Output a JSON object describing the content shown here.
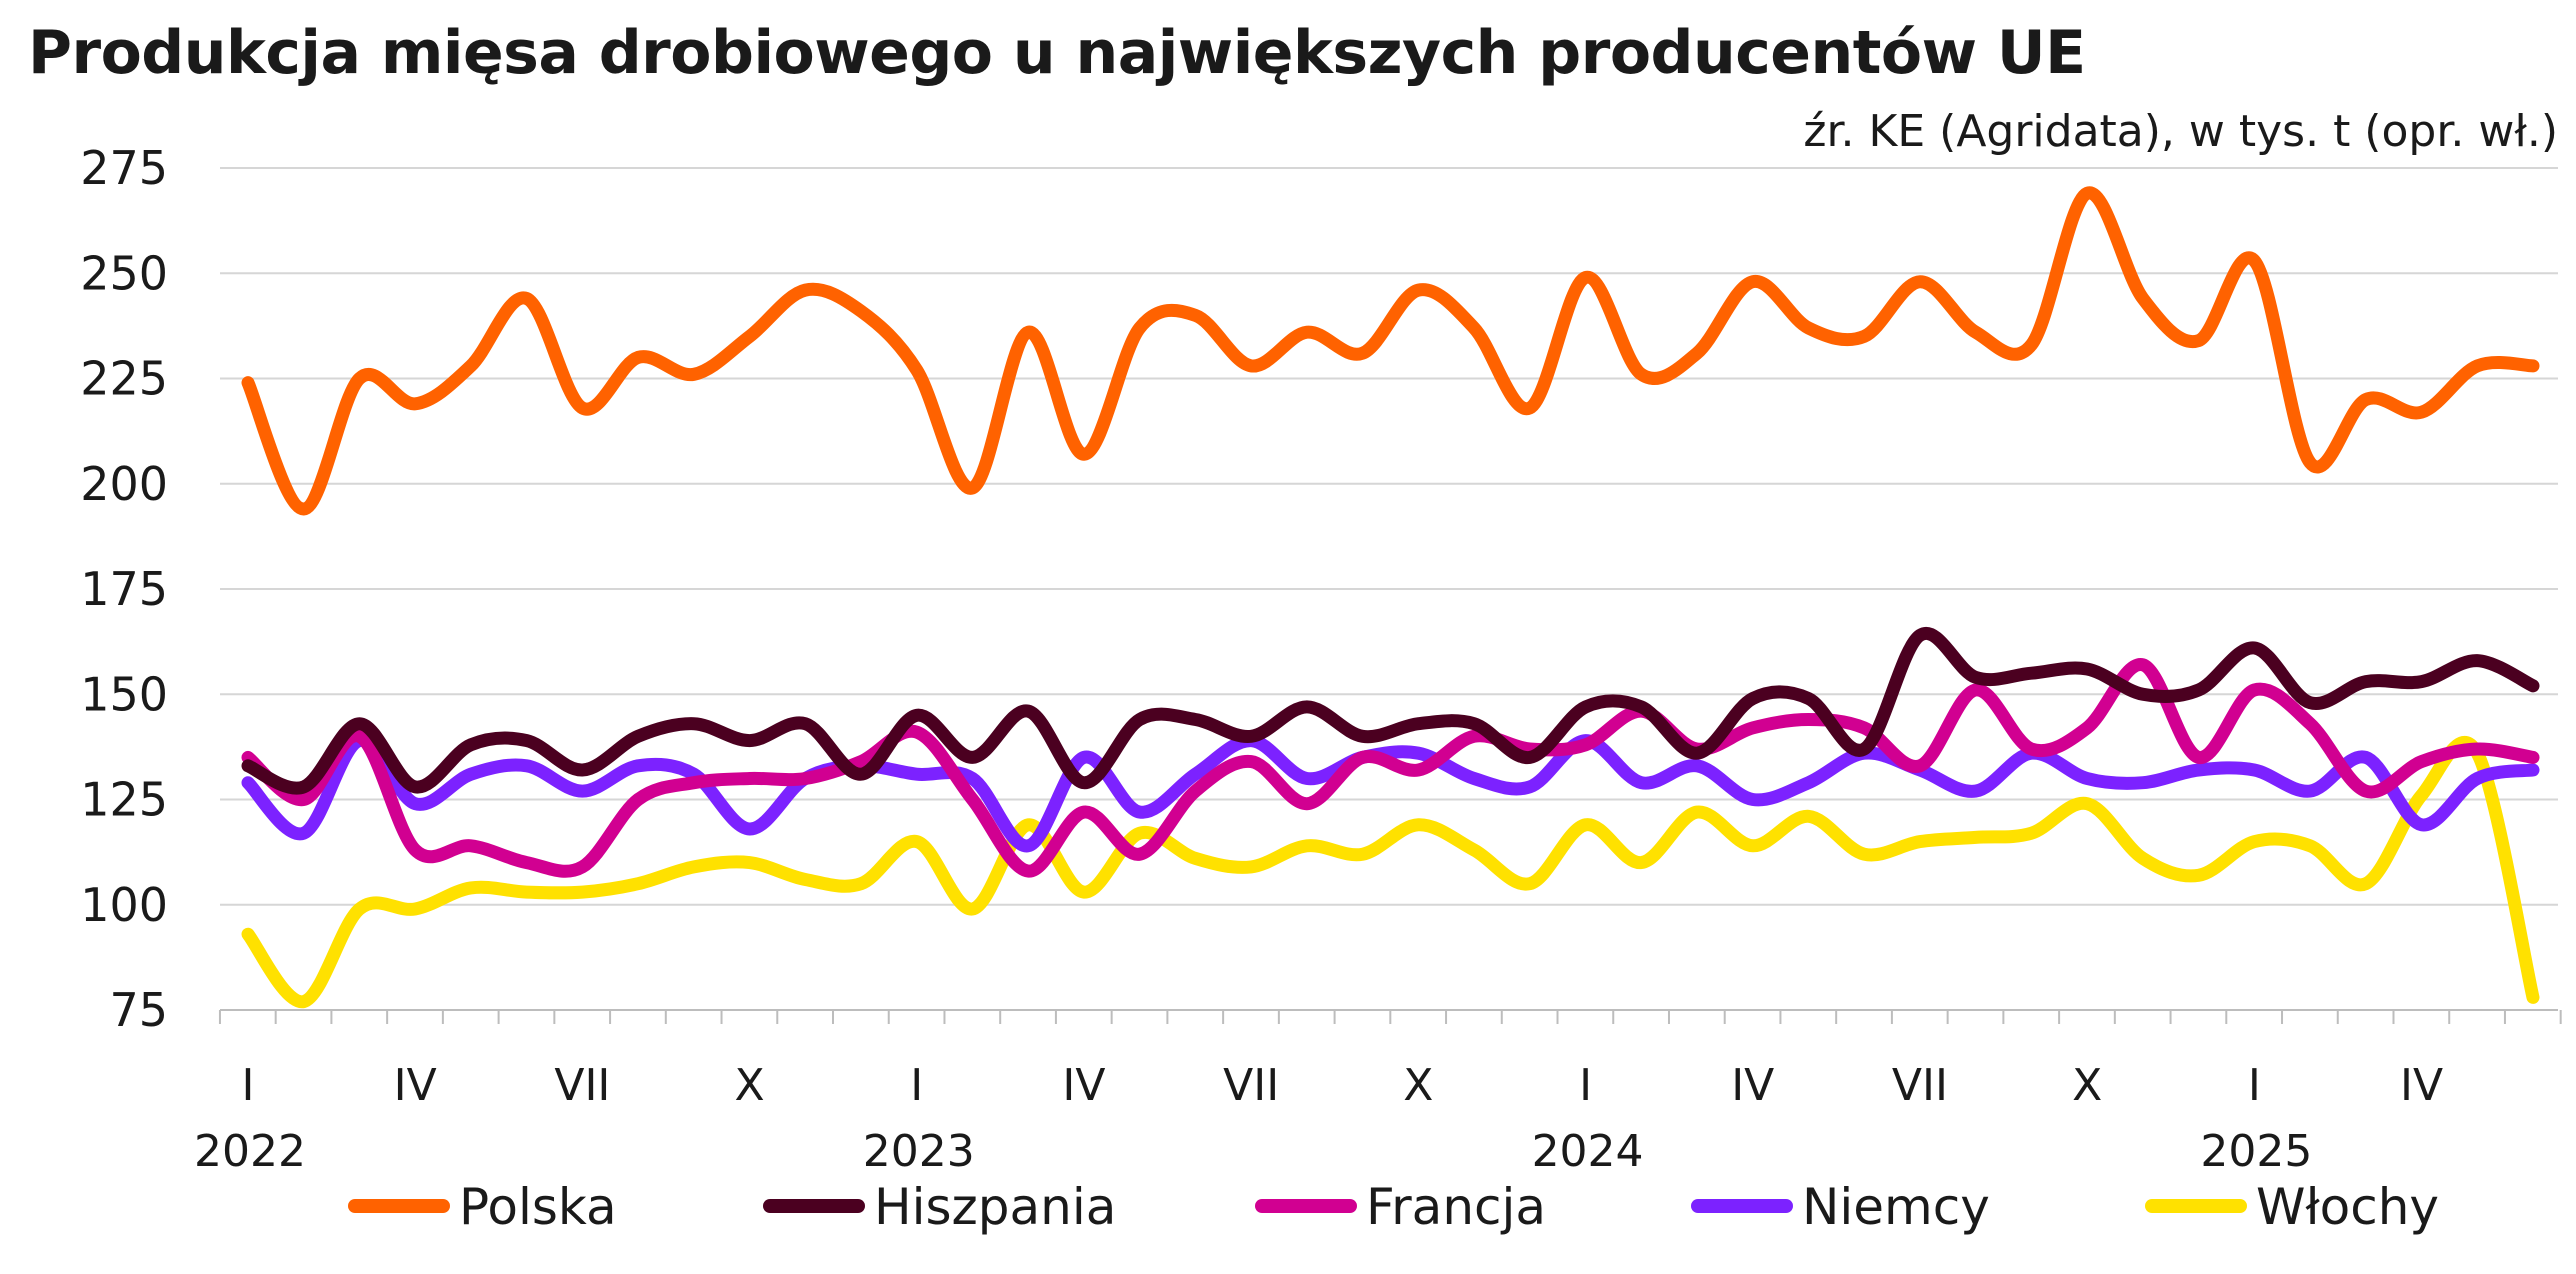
{
  "chart_data": {
    "type": "line",
    "title": "Produkcja mięsa drobiowego u największych producentów UE",
    "subtitle": "źr. KE (Agridata), w tys. t (opr. wł.)",
    "xlabel": "",
    "ylabel": "",
    "ylim": [
      75,
      275
    ],
    "yticks": [
      275,
      250,
      225,
      200,
      175,
      150,
      125,
      100,
      75
    ],
    "grid": true,
    "legend_position": "bottom",
    "x": [
      "2022-01",
      "2022-02",
      "2022-03",
      "2022-04",
      "2022-05",
      "2022-06",
      "2022-07",
      "2022-08",
      "2022-09",
      "2022-10",
      "2022-11",
      "2022-12",
      "2023-01",
      "2023-02",
      "2023-03",
      "2023-04",
      "2023-05",
      "2023-06",
      "2023-07",
      "2023-08",
      "2023-09",
      "2023-10",
      "2023-11",
      "2023-12",
      "2024-01",
      "2024-02",
      "2024-03",
      "2024-04",
      "2024-05",
      "2024-06",
      "2024-07",
      "2024-08",
      "2024-09",
      "2024-10",
      "2024-11",
      "2024-12",
      "2025-01",
      "2025-02",
      "2025-03",
      "2025-04",
      "2025-05",
      "2025-06"
    ],
    "x_tick_labels": [
      {
        "month": "2022-01",
        "label": "I",
        "year": "2022"
      },
      {
        "month": "2022-04",
        "label": "IV",
        "year": ""
      },
      {
        "month": "2022-07",
        "label": "VII",
        "year": ""
      },
      {
        "month": "2022-10",
        "label": "X",
        "year": ""
      },
      {
        "month": "2023-01",
        "label": "I",
        "year": "2023"
      },
      {
        "month": "2023-04",
        "label": "IV",
        "year": ""
      },
      {
        "month": "2023-07",
        "label": "VII",
        "year": ""
      },
      {
        "month": "2023-10",
        "label": "X",
        "year": ""
      },
      {
        "month": "2024-01",
        "label": "I",
        "year": "2024"
      },
      {
        "month": "2024-04",
        "label": "IV",
        "year": ""
      },
      {
        "month": "2024-07",
        "label": "VII",
        "year": ""
      },
      {
        "month": "2024-10",
        "label": "X",
        "year": ""
      },
      {
        "month": "2025-01",
        "label": "I",
        "year": "2025"
      },
      {
        "month": "2025-04",
        "label": "IV",
        "year": ""
      }
    ],
    "series": [
      {
        "name": "Polska",
        "color": "#FF6200",
        "values": [
          224,
          194,
          225,
          219,
          228,
          244,
          218,
          230,
          226,
          235,
          246,
          241,
          227,
          199,
          236,
          207,
          237,
          240,
          228,
          236,
          231,
          246,
          237,
          218,
          249,
          226,
          231,
          248,
          237,
          235,
          248,
          236,
          233,
          269,
          244,
          234,
          253,
          205,
          220,
          217,
          228,
          228
        ]
      },
      {
        "name": "Hiszpania",
        "color": "#4B0020",
        "values": [
          133,
          128,
          143,
          128,
          138,
          139,
          132,
          140,
          143,
          139,
          143,
          131,
          145,
          135,
          146,
          129,
          144,
          144,
          140,
          147,
          140,
          143,
          143,
          135,
          147,
          147,
          136,
          149,
          149,
          137,
          164,
          154,
          155,
          156,
          150,
          151,
          161,
          148,
          153,
          153,
          158,
          152
        ]
      },
      {
        "name": "Francja",
        "color": "#D10091",
        "values": [
          135,
          125,
          140,
          113,
          114,
          110,
          109,
          125,
          129,
          130,
          130,
          134,
          141,
          125,
          108,
          122,
          112,
          127,
          134,
          124,
          135,
          132,
          140,
          137,
          138,
          146,
          137,
          142,
          144,
          142,
          133,
          151,
          137,
          142,
          157,
          135,
          151,
          143,
          127,
          134,
          137,
          135
        ]
      },
      {
        "name": "Niemcy",
        "color": "#7C22FF",
        "values": [
          129,
          117,
          139,
          124,
          131,
          133,
          127,
          133,
          131,
          118,
          130,
          133,
          131,
          130,
          114,
          135,
          122,
          131,
          139,
          130,
          135,
          136,
          130,
          128,
          139,
          129,
          133,
          125,
          129,
          136,
          132,
          127,
          136,
          130,
          129,
          132,
          132,
          127,
          135,
          119,
          130,
          132
        ]
      },
      {
        "name": "Włochy",
        "color": "#FFE100",
        "values": [
          93,
          77,
          99,
          99,
          104,
          103,
          103,
          105,
          109,
          110,
          106,
          105,
          115,
          99,
          119,
          103,
          117,
          111,
          109,
          114,
          112,
          119,
          113,
          105,
          119,
          110,
          122,
          114,
          121,
          112,
          115,
          116,
          117,
          124,
          111,
          107,
          115,
          114,
          105,
          126,
          136,
          78
        ]
      }
    ]
  }
}
